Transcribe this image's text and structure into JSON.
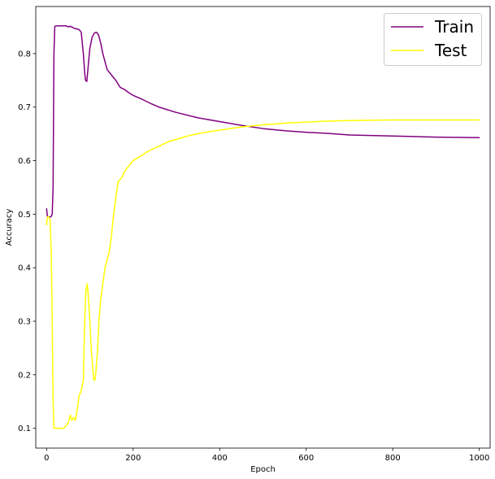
{
  "chart_data": {
    "type": "line",
    "title": "",
    "xlabel": "Epoch",
    "ylabel": "Accuracy",
    "xlim": [
      -25,
      1025
    ],
    "ylim": [
      0.063,
      0.888
    ],
    "xticks": [
      0,
      200,
      400,
      600,
      800,
      1000
    ],
    "xtick_labels": [
      "0",
      "200",
      "400",
      "600",
      "800",
      "1000"
    ],
    "yticks": [
      0.1,
      0.2,
      0.3,
      0.4,
      0.5,
      0.6,
      0.7,
      0.8
    ],
    "ytick_labels": [
      "0.1",
      "0.2",
      "0.3",
      "0.4",
      "0.5",
      "0.6",
      "0.7",
      "0.8"
    ],
    "grid": false,
    "legend": {
      "position": "top-right"
    },
    "series": [
      {
        "name": "Train",
        "color": "#800080",
        "points": [
          [
            0,
            0.51
          ],
          [
            2,
            0.495
          ],
          [
            6,
            0.495
          ],
          [
            10,
            0.495
          ],
          [
            13,
            0.5
          ],
          [
            15,
            0.55
          ],
          [
            17,
            0.8
          ],
          [
            19,
            0.851
          ],
          [
            25,
            0.852
          ],
          [
            35,
            0.852
          ],
          [
            45,
            0.852
          ],
          [
            50,
            0.85
          ],
          [
            55,
            0.851
          ],
          [
            60,
            0.849
          ],
          [
            65,
            0.847
          ],
          [
            70,
            0.846
          ],
          [
            75,
            0.845
          ],
          [
            80,
            0.84
          ],
          [
            85,
            0.8
          ],
          [
            88,
            0.765
          ],
          [
            90,
            0.75
          ],
          [
            93,
            0.748
          ],
          [
            96,
            0.775
          ],
          [
            100,
            0.81
          ],
          [
            105,
            0.83
          ],
          [
            110,
            0.838
          ],
          [
            115,
            0.84
          ],
          [
            120,
            0.835
          ],
          [
            125,
            0.82
          ],
          [
            130,
            0.8
          ],
          [
            135,
            0.785
          ],
          [
            140,
            0.77
          ],
          [
            150,
            0.76
          ],
          [
            160,
            0.75
          ],
          [
            170,
            0.737
          ],
          [
            180,
            0.733
          ],
          [
            190,
            0.727
          ],
          [
            200,
            0.722
          ],
          [
            220,
            0.715
          ],
          [
            240,
            0.707
          ],
          [
            260,
            0.7
          ],
          [
            300,
            0.69
          ],
          [
            350,
            0.68
          ],
          [
            400,
            0.673
          ],
          [
            450,
            0.666
          ],
          [
            500,
            0.66
          ],
          [
            550,
            0.656
          ],
          [
            600,
            0.653
          ],
          [
            650,
            0.651
          ],
          [
            700,
            0.648
          ],
          [
            800,
            0.646
          ],
          [
            900,
            0.644
          ],
          [
            1000,
            0.643
          ]
        ]
      },
      {
        "name": "Test",
        "color": "#ffff00",
        "points": [
          [
            0,
            0.48
          ],
          [
            2,
            0.495
          ],
          [
            5,
            0.495
          ],
          [
            8,
            0.49
          ],
          [
            11,
            0.42
          ],
          [
            13,
            0.3
          ],
          [
            15,
            0.15
          ],
          [
            17,
            0.1
          ],
          [
            20,
            0.1
          ],
          [
            30,
            0.1
          ],
          [
            40,
            0.1
          ],
          [
            45,
            0.105
          ],
          [
            50,
            0.11
          ],
          [
            55,
            0.125
          ],
          [
            58,
            0.115
          ],
          [
            62,
            0.12
          ],
          [
            66,
            0.115
          ],
          [
            70,
            0.13
          ],
          [
            75,
            0.16
          ],
          [
            80,
            0.17
          ],
          [
            85,
            0.19
          ],
          [
            88,
            0.3
          ],
          [
            91,
            0.36
          ],
          [
            94,
            0.37
          ],
          [
            97,
            0.34
          ],
          [
            100,
            0.3
          ],
          [
            103,
            0.25
          ],
          [
            106,
            0.22
          ],
          [
            109,
            0.19
          ],
          [
            112,
            0.19
          ],
          [
            115,
            0.215
          ],
          [
            118,
            0.25
          ],
          [
            121,
            0.3
          ],
          [
            125,
            0.34
          ],
          [
            130,
            0.37
          ],
          [
            135,
            0.4
          ],
          [
            140,
            0.415
          ],
          [
            145,
            0.43
          ],
          [
            150,
            0.46
          ],
          [
            155,
            0.5
          ],
          [
            160,
            0.53
          ],
          [
            165,
            0.56
          ],
          [
            170,
            0.565
          ],
          [
            175,
            0.57
          ],
          [
            180,
            0.58
          ],
          [
            190,
            0.59
          ],
          [
            200,
            0.6
          ],
          [
            220,
            0.61
          ],
          [
            240,
            0.62
          ],
          [
            260,
            0.627
          ],
          [
            280,
            0.635
          ],
          [
            300,
            0.64
          ],
          [
            330,
            0.647
          ],
          [
            360,
            0.652
          ],
          [
            400,
            0.657
          ],
          [
            450,
            0.663
          ],
          [
            500,
            0.667
          ],
          [
            550,
            0.67
          ],
          [
            600,
            0.672
          ],
          [
            650,
            0.674
          ],
          [
            700,
            0.675
          ],
          [
            800,
            0.676
          ],
          [
            900,
            0.676
          ],
          [
            1000,
            0.676
          ]
        ]
      }
    ]
  }
}
